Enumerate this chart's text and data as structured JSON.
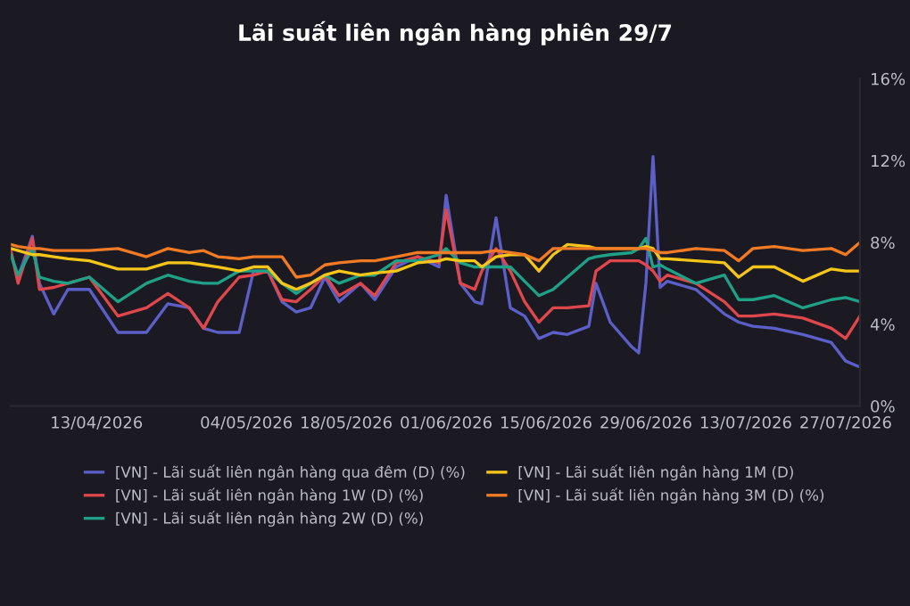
{
  "chart_data": {
    "type": "line",
    "title": "Lãi suất liên ngân hàng phiên 29/7",
    "x": [
      "2026-04-01",
      "2026-04-02",
      "2026-04-04",
      "2026-04-05",
      "2026-04-07",
      "2026-04-09",
      "2026-04-12",
      "2026-04-16",
      "2026-04-20",
      "2026-04-23",
      "2026-04-26",
      "2026-04-28",
      "2026-04-30",
      "2026-05-03",
      "2026-05-05",
      "2026-05-07",
      "2026-05-09",
      "2026-05-11",
      "2026-05-13",
      "2026-05-15",
      "2026-05-17",
      "2026-05-20",
      "2026-05-22",
      "2026-05-25",
      "2026-05-28",
      "2026-05-31",
      "2026-06-01",
      "2026-06-03",
      "2026-06-05",
      "2026-06-06",
      "2026-06-08",
      "2026-06-10",
      "2026-06-12",
      "2026-06-14",
      "2026-06-16",
      "2026-06-18",
      "2026-06-21",
      "2026-06-22",
      "2026-06-24",
      "2026-06-27",
      "2026-06-28",
      "2026-06-29",
      "2026-06-30",
      "2026-07-01",
      "2026-07-02",
      "2026-07-06",
      "2026-07-10",
      "2026-07-12",
      "2026-07-14",
      "2026-07-17",
      "2026-07-21",
      "2026-07-25",
      "2026-07-27",
      "2026-07-29"
    ],
    "series": [
      {
        "name": "[VN] - Lãi suất liên ngân hàng qua đêm (D) (%)",
        "color": "#5b5fc7",
        "values": [
          7.4,
          6.3,
          8.3,
          6.0,
          4.5,
          5.7,
          5.7,
          3.6,
          3.6,
          5.0,
          4.8,
          3.8,
          3.6,
          3.6,
          6.6,
          6.6,
          5.1,
          4.6,
          4.8,
          6.3,
          5.1,
          6.0,
          5.2,
          6.8,
          7.3,
          6.8,
          10.3,
          6.0,
          5.1,
          5.0,
          9.2,
          4.8,
          4.4,
          3.3,
          3.6,
          3.5,
          3.9,
          6.0,
          4.1,
          2.9,
          2.6,
          6.0,
          12.2,
          5.8,
          6.1,
          5.7,
          4.5,
          4.1,
          3.9,
          3.8,
          3.5,
          3.1,
          2.2,
          1.9
        ]
      },
      {
        "name": "[VN] - Lãi suất liên ngân hàng 1W (D) (%)",
        "color": "#e0474c",
        "values": [
          7.6,
          6.0,
          8.2,
          5.7,
          5.8,
          6.0,
          6.3,
          4.4,
          4.8,
          5.5,
          4.8,
          3.8,
          5.1,
          6.3,
          6.4,
          6.6,
          5.2,
          5.1,
          5.7,
          6.4,
          5.4,
          6.0,
          5.4,
          7.0,
          7.3,
          7.0,
          9.6,
          6.0,
          5.7,
          6.6,
          7.7,
          6.6,
          5.1,
          4.1,
          4.8,
          4.8,
          4.9,
          6.6,
          7.1,
          7.1,
          7.1,
          6.9,
          6.6,
          6.1,
          6.4,
          6.0,
          5.1,
          4.4,
          4.4,
          4.5,
          4.3,
          3.8,
          3.3,
          4.4
        ]
      },
      {
        "name": "[VN] - Lãi suất liên ngân hàng 2W (D) (%)",
        "color": "#1fa187",
        "values": [
          7.4,
          6.4,
          7.7,
          6.3,
          6.1,
          6.0,
          6.3,
          5.1,
          6.0,
          6.4,
          6.1,
          6.0,
          6.0,
          6.6,
          6.6,
          6.6,
          6.0,
          5.5,
          6.0,
          6.4,
          6.0,
          6.4,
          6.4,
          7.1,
          7.1,
          7.4,
          7.7,
          7.0,
          6.8,
          6.8,
          6.8,
          6.8,
          6.1,
          5.4,
          5.7,
          6.3,
          7.2,
          7.3,
          7.4,
          7.5,
          7.7,
          8.2,
          6.8,
          6.9,
          6.7,
          6.0,
          6.4,
          5.2,
          5.2,
          5.4,
          4.8,
          5.2,
          5.3,
          5.1
        ]
      },
      {
        "name": "[VN] - Lãi suất liên ngân hàng 1M (D)",
        "color": "#f5c518",
        "values": [
          7.7,
          7.6,
          7.4,
          7.4,
          7.3,
          7.2,
          7.1,
          6.7,
          6.7,
          7.0,
          7.0,
          6.9,
          6.8,
          6.6,
          6.8,
          6.8,
          6.0,
          5.7,
          6.0,
          6.4,
          6.6,
          6.4,
          6.5,
          6.6,
          7.0,
          7.1,
          7.2,
          7.1,
          7.1,
          6.8,
          7.3,
          7.4,
          7.4,
          6.6,
          7.4,
          7.9,
          7.8,
          7.7,
          7.7,
          7.7,
          7.7,
          7.8,
          7.7,
          7.2,
          7.2,
          7.1,
          7.0,
          6.3,
          6.8,
          6.8,
          6.1,
          6.7,
          6.6,
          6.6
        ]
      },
      {
        "name": "[VN] - Lãi suất liên ngân hàng 3M (D) (%)",
        "color": "#f07b24",
        "values": [
          7.9,
          7.8,
          7.7,
          7.7,
          7.6,
          7.6,
          7.6,
          7.7,
          7.3,
          7.7,
          7.5,
          7.6,
          7.3,
          7.2,
          7.3,
          7.3,
          7.3,
          6.3,
          6.4,
          6.9,
          7.0,
          7.1,
          7.1,
          7.3,
          7.5,
          7.5,
          7.5,
          7.5,
          7.5,
          7.5,
          7.6,
          7.5,
          7.4,
          7.1,
          7.7,
          7.7,
          7.7,
          7.7,
          7.7,
          7.7,
          7.7,
          7.7,
          7.6,
          7.5,
          7.5,
          7.7,
          7.6,
          7.1,
          7.7,
          7.8,
          7.6,
          7.7,
          7.4,
          8.0
        ]
      }
    ],
    "xlim": [
      "2026-04-01",
      "2026-07-29"
    ],
    "xticks": [
      {
        "value": "2026-04-13",
        "label": "13/04/2026"
      },
      {
        "value": "2026-05-04",
        "label": "04/05/2026"
      },
      {
        "value": "2026-05-18",
        "label": "18/05/2026"
      },
      {
        "value": "2026-06-01",
        "label": "01/06/2026"
      },
      {
        "value": "2026-06-15",
        "label": "15/06/2026"
      },
      {
        "value": "2026-06-29",
        "label": "29/06/2026"
      },
      {
        "value": "2026-07-13",
        "label": "13/07/2026"
      },
      {
        "value": "2026-07-27",
        "label": "27/07/2026"
      }
    ],
    "ylim": [
      0,
      16
    ],
    "yticks": [
      {
        "value": 0,
        "label": "0%"
      },
      {
        "value": 4,
        "label": "4%"
      },
      {
        "value": 8,
        "label": "8%"
      },
      {
        "value": 12,
        "label": "12%"
      },
      {
        "value": 16,
        "label": "16%"
      }
    ],
    "grid": false,
    "legend": "bottom",
    "marker": "none",
    "line_style": "solid"
  }
}
